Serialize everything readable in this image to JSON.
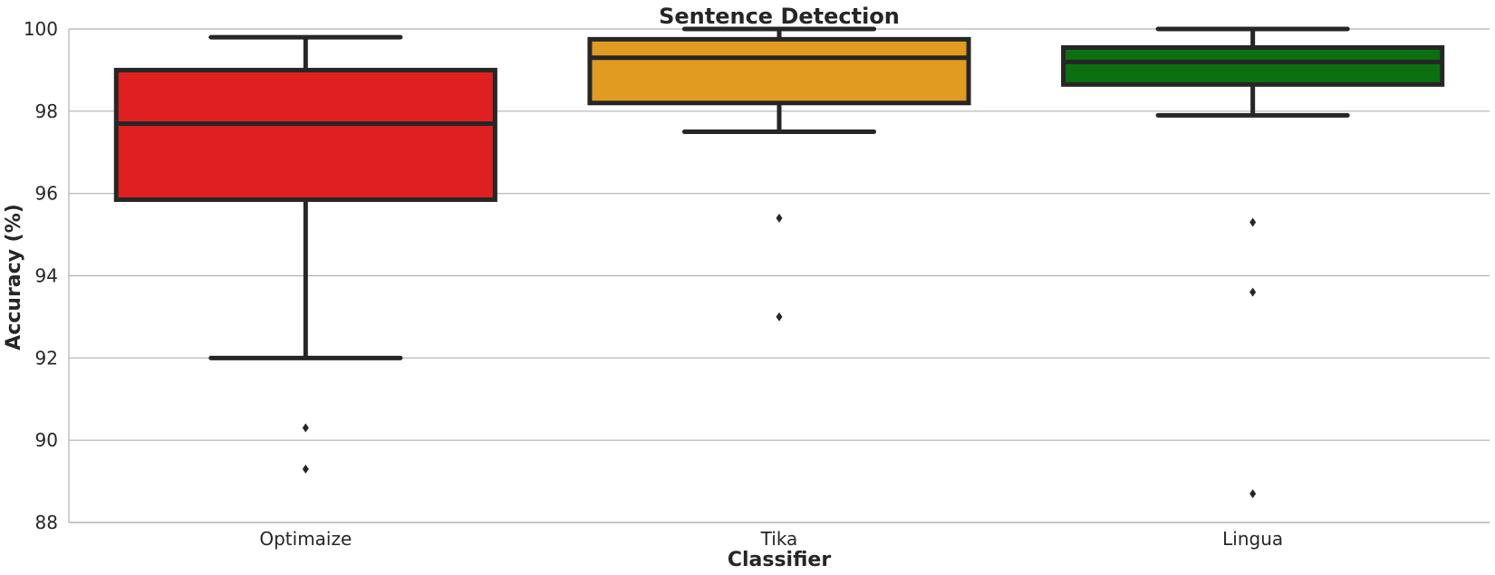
{
  "chart_data": {
    "type": "box",
    "title": "Sentence Detection",
    "xlabel": "Classifier",
    "ylabel": "Accuracy (%)",
    "ylim": [
      88,
      100
    ],
    "yticks": [
      "88",
      "90",
      "92",
      "94",
      "96",
      "98",
      "100"
    ],
    "grid": "horizontal",
    "categories": [
      "Optimaize",
      "Tika",
      "Lingua"
    ],
    "boxes": [
      {
        "name": "Optimaize",
        "color": "#e02020",
        "whisker_low": 92.0,
        "q1": 95.85,
        "median": 97.7,
        "q3": 99.0,
        "whisker_high": 99.8,
        "outliers": [
          90.3,
          89.3
        ]
      },
      {
        "name": "Tika",
        "color": "#e09b20",
        "whisker_low": 97.5,
        "q1": 98.2,
        "median": 99.3,
        "q3": 99.75,
        "whisker_high": 100.0,
        "outliers": [
          95.4,
          93.0
        ]
      },
      {
        "name": "Lingua",
        "color": "#0d7010",
        "whisker_low": 97.9,
        "q1": 98.65,
        "median": 99.2,
        "q3": 99.55,
        "whisker_high": 100.0,
        "outliers": [
          95.3,
          93.6,
          88.7
        ]
      }
    ]
  }
}
